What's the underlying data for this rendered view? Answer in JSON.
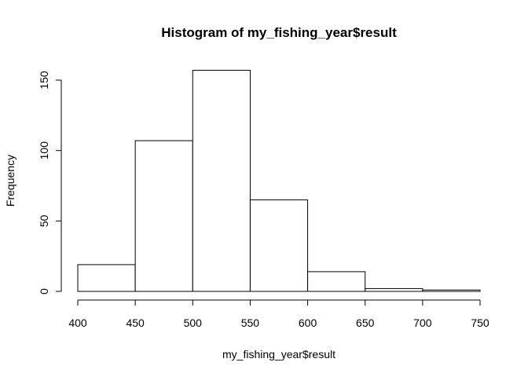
{
  "chart_data": {
    "type": "bar",
    "title": "Histogram of my_fishing_year$result",
    "xlabel": "my_fishing_year$result",
    "ylabel": "Frequency",
    "bins": [
      {
        "from": 400,
        "to": 450,
        "count": 19
      },
      {
        "from": 450,
        "to": 500,
        "count": 107
      },
      {
        "from": 500,
        "to": 550,
        "count": 157
      },
      {
        "from": 550,
        "to": 600,
        "count": 65
      },
      {
        "from": 600,
        "to": 650,
        "count": 14
      },
      {
        "from": 650,
        "to": 700,
        "count": 2
      },
      {
        "from": 700,
        "to": 750,
        "count": 1
      }
    ],
    "xlim": [
      400,
      750
    ],
    "ylim": [
      0,
      150
    ],
    "xticks": [
      "400",
      "450",
      "500",
      "550",
      "600",
      "650",
      "700",
      "750"
    ],
    "yticks": [
      "0",
      "50",
      "100",
      "150"
    ],
    "grid": false
  }
}
